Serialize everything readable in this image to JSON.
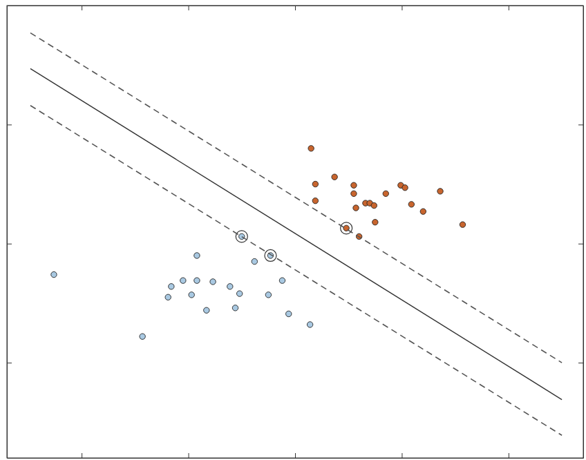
{
  "chart_data": {
    "type": "scatter",
    "xlim": [
      -0.7,
      4.7
    ],
    "ylim": [
      -0.8,
      3.0
    ],
    "xticks": [
      0,
      1,
      2,
      3,
      4
    ],
    "yticks": [
      0,
      1,
      2
    ],
    "tick_labels": false,
    "grid": false,
    "series": [
      {
        "type": "scatter",
        "color": "#c8652e",
        "marker": "circle",
        "x": [
          2.15,
          2.19,
          2.19,
          2.37,
          2.55,
          2.55,
          2.57,
          2.66,
          2.7,
          2.74,
          2.85,
          2.99,
          3.03,
          3.09,
          3.2,
          3.36,
          3.57,
          2.75,
          2.48,
          2.6
        ],
        "values": [
          1.8,
          1.5,
          1.36,
          1.56,
          1.49,
          1.42,
          1.3,
          1.34,
          1.34,
          1.32,
          1.42,
          1.49,
          1.47,
          1.33,
          1.27,
          1.44,
          1.16,
          1.18,
          1.13,
          1.06
        ]
      },
      {
        "type": "scatter",
        "color": "#a9c9e2",
        "marker": "circle",
        "x": [
          -0.26,
          0.57,
          0.81,
          0.84,
          0.95,
          1.03,
          1.08,
          1.08,
          1.17,
          1.23,
          1.39,
          1.44,
          1.48,
          1.5,
          1.62,
          1.75,
          1.77,
          1.88,
          1.94,
          2.14
        ],
        "values": [
          0.74,
          0.22,
          0.55,
          0.64,
          0.69,
          0.57,
          0.69,
          0.9,
          0.44,
          0.68,
          0.64,
          0.46,
          0.58,
          1.06,
          0.85,
          0.57,
          0.9,
          0.69,
          0.41,
          0.32
        ]
      },
      {
        "type": "scatter",
        "color": "#333333",
        "marker": "ring",
        "x": [
          2.48,
          1.5,
          1.77
        ],
        "values": [
          1.13,
          1.06,
          0.9
        ]
      },
      {
        "type": "line",
        "color": "#333333",
        "line_style": "solid",
        "x": [
          -0.48,
          4.5
        ],
        "values": [
          2.47,
          -0.31
        ]
      },
      {
        "type": "line",
        "color": "#555555",
        "line_style": "dashed",
        "x": [
          -0.48,
          4.5
        ],
        "values": [
          2.77,
          0.0
        ]
      },
      {
        "type": "line",
        "color": "#555555",
        "line_style": "dashed",
        "x": [
          -0.48,
          4.5
        ],
        "values": [
          2.16,
          -0.61
        ]
      }
    ]
  }
}
